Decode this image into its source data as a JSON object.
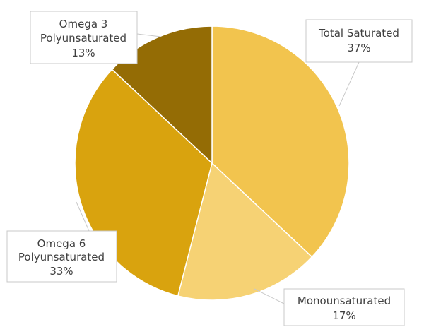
{
  "chart_data": {
    "type": "pie",
    "title": "",
    "start_angle_deg": 0,
    "direction": "clockwise",
    "slices": [
      {
        "label_lines": [
          "Total Saturated"
        ],
        "percent_label": "37%",
        "value": 37,
        "color": "#F2C44E"
      },
      {
        "label_lines": [
          "Monounsaturated"
        ],
        "percent_label": "17%",
        "value": 17,
        "color": "#F6D274"
      },
      {
        "label_lines": [
          "Omega 6",
          "Polyunsaturated"
        ],
        "percent_label": "33%",
        "value": 33,
        "color": "#D9A30E"
      },
      {
        "label_lines": [
          "Omega 3",
          "Polyunsaturated"
        ],
        "percent_label": "13%",
        "value": 13,
        "color": "#946C05"
      }
    ]
  }
}
